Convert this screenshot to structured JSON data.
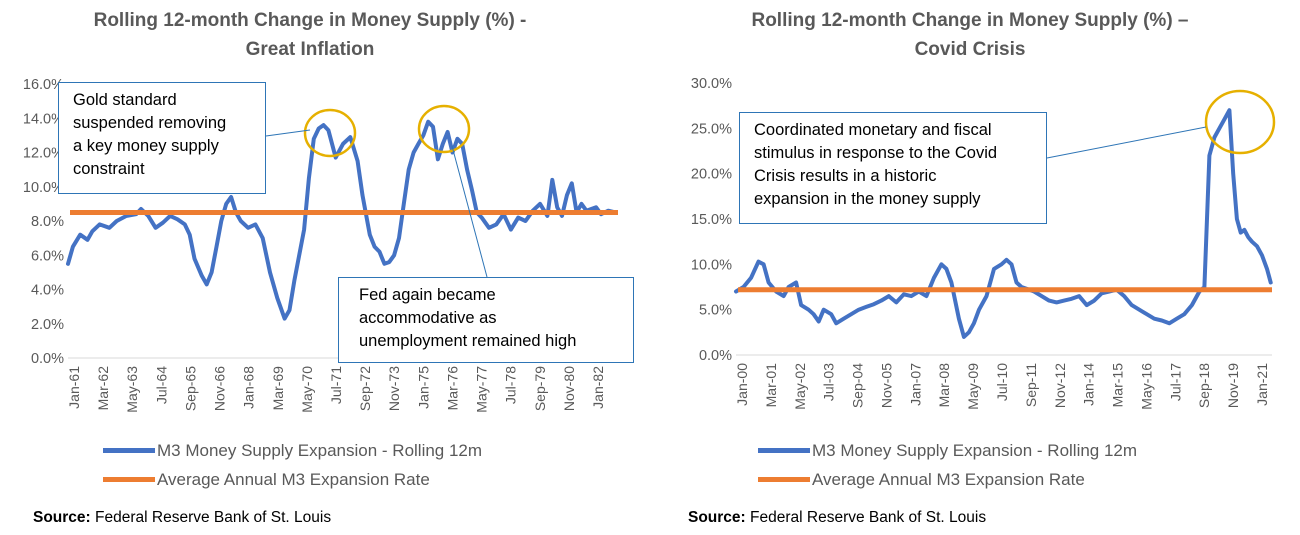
{
  "chart_data": [
    {
      "type": "line",
      "title_line1": "Rolling 12-month Change in Money Supply (%) -",
      "title_line2": "Great Inflation",
      "ylim": [
        0,
        16
      ],
      "y_ticks": [
        "0.0%",
        "2.0%",
        "4.0%",
        "6.0%",
        "8.0%",
        "10.0%",
        "12.0%",
        "14.0%",
        "16.0%"
      ],
      "x_tick_labels": [
        "Jan-61",
        "Mar-62",
        "May-63",
        "Jul-64",
        "Sep-65",
        "Nov-66",
        "Jan-68",
        "Mar-69",
        "May-70",
        "Jul-71",
        "Sep-72",
        "Nov-73",
        "Jan-75",
        "Mar-76",
        "May-77",
        "Jul-78",
        "Sep-79",
        "Nov-80",
        "Jan-82"
      ],
      "x_start": 1961.0,
      "x_end": 1983.6,
      "series": [
        {
          "name": "M3 Money Supply Expansion - Rolling 12m",
          "color": "#4472c4",
          "x": [
            1961.0,
            1961.2,
            1961.5,
            1961.8,
            1962.0,
            1962.3,
            1962.7,
            1963.0,
            1963.4,
            1963.8,
            1964.0,
            1964.3,
            1964.6,
            1964.9,
            1965.2,
            1965.5,
            1965.8,
            1966.0,
            1966.2,
            1966.5,
            1966.7,
            1966.9,
            1967.1,
            1967.3,
            1967.5,
            1967.7,
            1967.9,
            1968.1,
            1968.4,
            1968.7,
            1969.0,
            1969.3,
            1969.6,
            1969.9,
            1970.1,
            1970.3,
            1970.5,
            1970.7,
            1970.9,
            1971.1,
            1971.3,
            1971.5,
            1971.7,
            1972.0,
            1972.3,
            1972.6,
            1972.9,
            1973.1,
            1973.4,
            1973.6,
            1973.8,
            1974.0,
            1974.2,
            1974.4,
            1974.6,
            1974.8,
            1975.0,
            1975.2,
            1975.4,
            1975.6,
            1975.8,
            1976.0,
            1976.2,
            1976.4,
            1976.6,
            1976.8,
            1977.0,
            1977.2,
            1977.4,
            1977.6,
            1977.8,
            1978.0,
            1978.3,
            1978.6,
            1978.9,
            1979.2,
            1979.5,
            1979.8,
            1980.1,
            1980.4,
            1980.7,
            1980.9,
            1981.1,
            1981.3,
            1981.5,
            1981.7,
            1981.9,
            1982.1,
            1982.3,
            1982.5,
            1982.7,
            1982.9,
            1983.2,
            1983.5
          ],
          "values": [
            5.5,
            6.5,
            7.2,
            6.9,
            7.4,
            7.8,
            7.6,
            8.0,
            8.3,
            8.4,
            8.7,
            8.3,
            7.6,
            7.9,
            8.3,
            8.1,
            7.8,
            7.2,
            5.8,
            4.8,
            4.3,
            5.0,
            6.5,
            8.0,
            9.0,
            9.4,
            8.5,
            8.0,
            7.6,
            7.8,
            7.0,
            5.0,
            3.5,
            2.3,
            2.8,
            4.5,
            6.0,
            7.5,
            10.5,
            12.8,
            13.4,
            13.6,
            13.3,
            11.7,
            12.5,
            12.9,
            11.5,
            9.5,
            7.2,
            6.5,
            6.2,
            5.5,
            5.6,
            6.0,
            7.0,
            9.0,
            11.0,
            12.0,
            12.5,
            13.0,
            13.8,
            13.5,
            11.6,
            12.5,
            13.2,
            12.0,
            12.8,
            12.5,
            11.0,
            9.8,
            8.5,
            8.2,
            7.6,
            7.8,
            8.4,
            7.5,
            8.2,
            8.0,
            8.6,
            9.0,
            8.3,
            10.4,
            8.8,
            8.3,
            9.5,
            10.2,
            8.5,
            9.0,
            8.6,
            8.7,
            8.8,
            8.4,
            8.6,
            8.5
          ]
        },
        {
          "name": "Average Annual M3 Expansion Rate",
          "color": "#ed7d31",
          "constant": 8.5
        }
      ],
      "annotations": [
        {
          "text_lines": [
            "Gold standard",
            "suspended removing",
            "a key money supply",
            "constraint"
          ]
        },
        {
          "text_lines": [
            "Fed again became",
            "accommodative  as",
            "unemployment remained high"
          ]
        }
      ],
      "source_label": "Source:",
      "source_text": " Federal Reserve Bank of St. Louis"
    },
    {
      "type": "line",
      "title_line1": "Rolling 12-month Change in Money Supply (%) –",
      "title_line2": "Covid Crisis",
      "ylim": [
        0,
        30
      ],
      "y_ticks": [
        "0.0%",
        "5.0%",
        "10.0%",
        "15.0%",
        "20.0%",
        "25.0%",
        "30.0%"
      ],
      "x_tick_labels": [
        "Jan-00",
        "Mar-01",
        "May-02",
        "Jul-03",
        "Sep-04",
        "Nov-05",
        "Jan-07",
        "Mar-08",
        "May-09",
        "Jul-10",
        "Sep-11",
        "Nov-12",
        "Jan-14",
        "Mar-15",
        "May-16",
        "Jul-17",
        "Sep-18",
        "Nov-19",
        "Jan-21"
      ],
      "x_start": 2000.0,
      "x_end": 2021.4,
      "series": [
        {
          "name": "M3 Money Supply Expansion - Rolling 12m",
          "color": "#4472c4",
          "x": [
            2000.0,
            2000.3,
            2000.6,
            2000.9,
            2001.1,
            2001.3,
            2001.6,
            2001.9,
            2002.1,
            2002.4,
            2002.6,
            2002.9,
            2003.1,
            2003.3,
            2003.5,
            2003.8,
            2004.0,
            2004.3,
            2004.6,
            2004.9,
            2005.2,
            2005.5,
            2005.8,
            2006.1,
            2006.4,
            2006.7,
            2007.0,
            2007.3,
            2007.6,
            2007.9,
            2008.2,
            2008.4,
            2008.6,
            2008.9,
            2009.1,
            2009.3,
            2009.5,
            2009.7,
            2010.0,
            2010.3,
            2010.6,
            2010.8,
            2011.0,
            2011.2,
            2011.4,
            2011.6,
            2011.9,
            2012.2,
            2012.5,
            2012.8,
            2013.1,
            2013.4,
            2013.7,
            2014.0,
            2014.3,
            2014.6,
            2014.9,
            2015.2,
            2015.5,
            2015.8,
            2016.1,
            2016.4,
            2016.7,
            2017.0,
            2017.3,
            2017.6,
            2017.9,
            2018.2,
            2018.5,
            2018.7,
            2018.9,
            2019.0,
            2019.1,
            2019.3,
            2019.5,
            2019.7,
            2019.85,
            2020.0,
            2020.15,
            2020.3,
            2020.45,
            2020.6,
            2020.8,
            2021.0,
            2021.2,
            2021.35
          ],
          "values": [
            7.0,
            7.5,
            8.5,
            10.3,
            10.0,
            8.0,
            7.0,
            6.5,
            7.5,
            8.0,
            5.5,
            5.0,
            4.5,
            3.7,
            5.0,
            4.5,
            3.5,
            4.0,
            4.5,
            5.0,
            5.3,
            5.6,
            6.0,
            6.5,
            5.8,
            6.7,
            6.5,
            7.0,
            6.5,
            8.5,
            10.0,
            9.5,
            8.0,
            4.0,
            2.0,
            2.5,
            3.5,
            5.0,
            6.5,
            9.5,
            10.0,
            10.5,
            10.0,
            8.0,
            7.5,
            7.3,
            7.0,
            6.5,
            6.0,
            5.8,
            6.0,
            6.2,
            6.5,
            5.5,
            6.0,
            6.8,
            7.0,
            7.2,
            6.5,
            5.5,
            5.0,
            4.5,
            4.0,
            3.8,
            3.5,
            4.0,
            4.5,
            5.5,
            7.0,
            7.5,
            22.0,
            23.0,
            24.0,
            25.0,
            26.0,
            27.0,
            20.0,
            15.0,
            13.5,
            13.8,
            13.0,
            12.5,
            12.0,
            11.0,
            9.5,
            8.0
          ]
        },
        {
          "name": "Average Annual M3 Expansion Rate",
          "color": "#ed7d31",
          "constant": 7.2
        }
      ],
      "annotations": [
        {
          "text_lines": [
            "Coordinated monetary and fiscal",
            "stimulus in response to the Covid",
            "Crisis results in a historic",
            "expansion in the money supply"
          ]
        }
      ],
      "source_label": "Source:",
      "source_text": " Federal Reserve Bank of St. Louis"
    }
  ]
}
